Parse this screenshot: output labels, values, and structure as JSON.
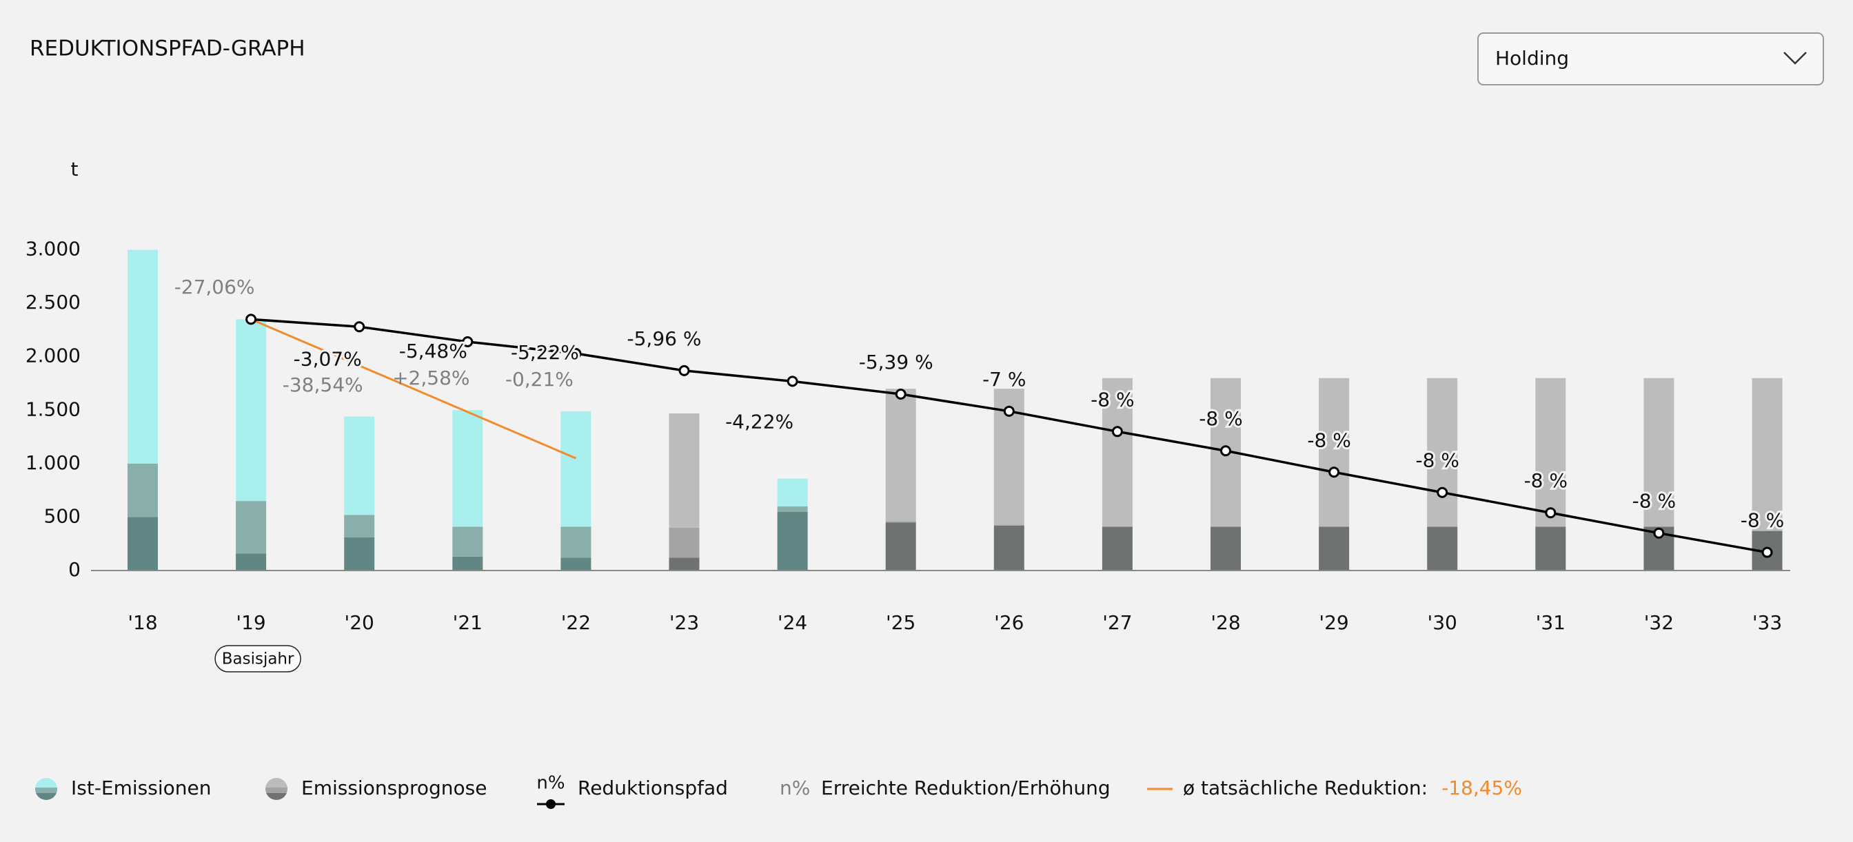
{
  "chart_data": {
    "type": "bar",
    "title": "REDUKTIONSPFAD-GRAPH",
    "dropdown": "Holding",
    "y_label": "t",
    "base_year_label": "Basisjahr",
    "categories": [
      "'18",
      "'19",
      "'20",
      "'21",
      "'22",
      "'23",
      "'24",
      "'25",
      "'26",
      "'27",
      "'28",
      "'29",
      "'30",
      "'31",
      "'32",
      "'33"
    ],
    "ylim": [
      0,
      3300
    ],
    "yticks": [
      0,
      500,
      {
        "value": 1000,
        "label": "1.000"
      },
      {
        "value": 1500,
        "label": "1.500"
      },
      {
        "value": 2000,
        "label": "2.000"
      },
      {
        "value": 2500,
        "label": "2.500"
      },
      {
        "value": 3000,
        "label": "3.000"
      }
    ],
    "series": [
      {
        "name": "Ist-Emissionen",
        "colors": [
          "#628683",
          "#8aaeaa",
          "#a8efee"
        ],
        "values": [
          [
            500,
            500,
            2000
          ],
          [
            160,
            490,
            1700
          ],
          [
            310,
            210,
            920
          ],
          [
            130,
            280,
            1090
          ],
          [
            120,
            290,
            1080
          ],
          null,
          [
            550,
            50,
            260
          ],
          null,
          null,
          null,
          null,
          null,
          null,
          null,
          null,
          null
        ]
      },
      {
        "name": "Emissionsprognose",
        "colors": [
          "#6e7371",
          "#a3a3a3",
          "#bcbcbc"
        ],
        "values": [
          null,
          null,
          null,
          null,
          null,
          [
            120,
            280,
            1070
          ],
          null,
          [
            450,
            10,
            1240
          ],
          [
            420,
            10,
            1270
          ],
          [
            410,
            0,
            1390
          ],
          [
            410,
            0,
            1390
          ],
          [
            410,
            0,
            1390
          ],
          [
            410,
            0,
            1390
          ],
          [
            410,
            0,
            1390
          ],
          [
            410,
            0,
            1390
          ],
          [
            370,
            0,
            1430
          ]
        ]
      }
    ],
    "reduction_path": {
      "name": "Reduktionspfad",
      "marker_label": "n%",
      "color": "#000000",
      "values": [
        null,
        2350,
        2280,
        2140,
        2030,
        1870,
        1770,
        1650,
        1490,
        1300,
        1120,
        920,
        730,
        540,
        350,
        170
      ],
      "labels": [
        null,
        null,
        "-3,07%",
        "-5,48%",
        "-5,22%",
        "-5,96 %",
        "-4,22%",
        "-5,39 %",
        "-7 %",
        "-8 %",
        "-8 %",
        "-8 %",
        "-8 %",
        "-8 %",
        "-8 %",
        "-8 %"
      ]
    },
    "achieved": {
      "name": "Erreichte Reduktion/Erhöhung",
      "marker_label": "n%",
      "color": "#808080",
      "labels": [
        null,
        "-27,06%",
        "-38,54%",
        "+2,58%",
        "-0,21%",
        null,
        null,
        null,
        null,
        null,
        null,
        null,
        null,
        null,
        null,
        null
      ]
    },
    "average": {
      "name": "ø tatsächliche Reduktion:",
      "value_label": "-18,45%",
      "color": "#f28a2e",
      "x": [
        "'19",
        "'22"
      ],
      "values": [
        2350,
        1050
      ]
    }
  }
}
